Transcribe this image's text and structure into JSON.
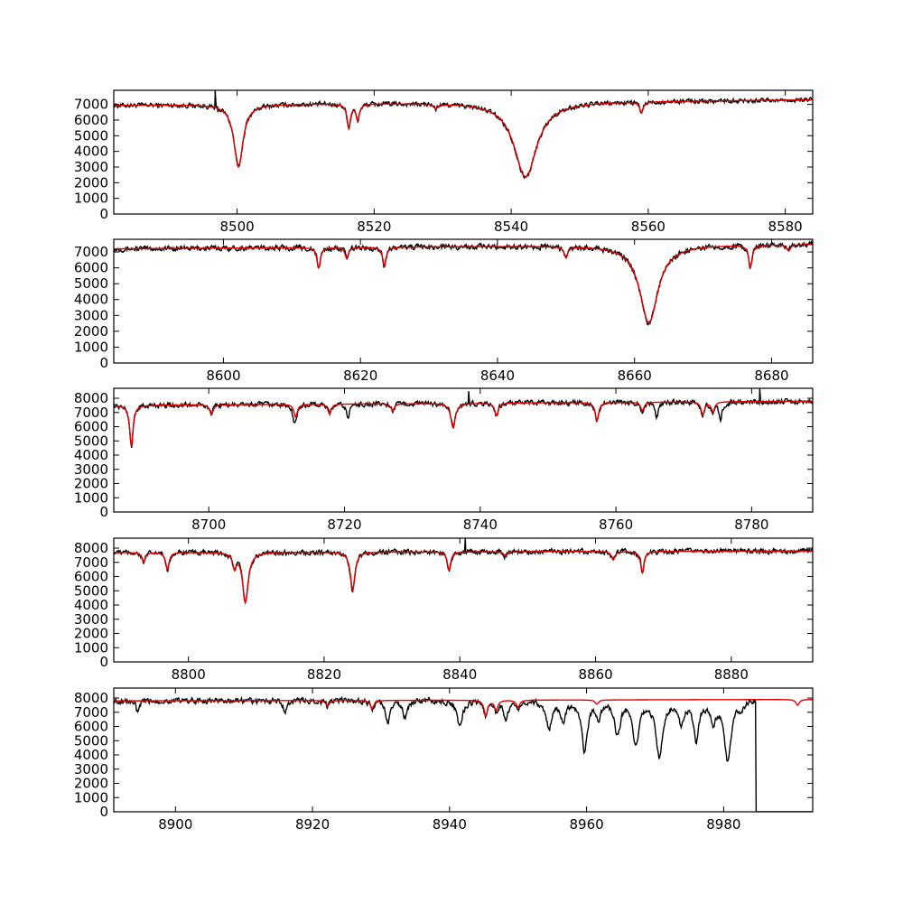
{
  "chart_data": [
    {
      "type": "line",
      "xlim": [
        8482,
        8584
      ],
      "ylim": [
        0,
        7900
      ],
      "xticks": [
        "8500",
        "8520",
        "8540",
        "8560",
        "8580"
      ],
      "yticks": [
        "0",
        "1000",
        "2000",
        "3000",
        "4000",
        "5000",
        "6000",
        "7000"
      ],
      "continuum": [
        [
          8482,
          6950
        ],
        [
          8584,
          7300
        ]
      ],
      "lines": [
        {
          "center": 8500.2,
          "depth": 4000,
          "width": 0.8
        },
        {
          "center": 8516.3,
          "depth": 1500,
          "width": 0.3
        },
        {
          "center": 8517.6,
          "depth": 1000,
          "width": 0.3
        },
        {
          "center": 8529.0,
          "depth": 300,
          "width": 0.3
        },
        {
          "center": 8542.1,
          "depth": 4800,
          "width": 2.0
        },
        {
          "center": 8559.0,
          "depth": 700,
          "width": 0.3
        }
      ],
      "series": [
        {
          "color": "#000000",
          "noise": 110,
          "spikes": [
            [
              8496.8,
              7900
            ],
            [
              8497.2,
              6500
            ]
          ],
          "extra": []
        },
        {
          "color": "#e00000",
          "noise": 0,
          "spikes": [],
          "extra": []
        }
      ]
    },
    {
      "type": "line",
      "xlim": [
        8584,
        8686
      ],
      "ylim": [
        0,
        7800
      ],
      "xticks": [
        "8600",
        "8620",
        "8640",
        "8660",
        "8680"
      ],
      "yticks": [
        "0",
        "1000",
        "2000",
        "3000",
        "4000",
        "5000",
        "6000",
        "7000"
      ],
      "continuum": [
        [
          8584,
          7200
        ],
        [
          8686,
          7500
        ]
      ],
      "lines": [
        {
          "center": 8613.9,
          "depth": 1300,
          "width": 0.3
        },
        {
          "center": 8618.0,
          "depth": 700,
          "width": 0.3
        },
        {
          "center": 8623.5,
          "depth": 1200,
          "width": 0.3
        },
        {
          "center": 8650.0,
          "depth": 700,
          "width": 0.3
        },
        {
          "center": 8662.1,
          "depth": 4900,
          "width": 1.6
        },
        {
          "center": 8676.9,
          "depth": 1400,
          "width": 0.3
        },
        {
          "center": 8682.5,
          "depth": 400,
          "width": 0.3
        }
      ],
      "series": [
        {
          "color": "#000000",
          "noise": 120,
          "spikes": [],
          "extra": []
        },
        {
          "color": "#e00000",
          "noise": 0,
          "spikes": [],
          "extra": []
        }
      ]
    },
    {
      "type": "line",
      "xlim": [
        8686,
        8789
      ],
      "ylim": [
        0,
        8700
      ],
      "xticks": [
        "8700",
        "8720",
        "8740",
        "8760",
        "8780"
      ],
      "yticks": [
        "0",
        "1000",
        "2000",
        "3000",
        "4000",
        "5000",
        "6000",
        "7000",
        "8000"
      ],
      "continuum": [
        [
          8686,
          7500
        ],
        [
          8789,
          7800
        ]
      ],
      "lines": [
        {
          "center": 8688.6,
          "depth": 2900,
          "width": 0.3
        },
        {
          "center": 8700.4,
          "depth": 700,
          "width": 0.3
        },
        {
          "center": 8712.8,
          "depth": 900,
          "width": 0.3
        },
        {
          "center": 8717.8,
          "depth": 700,
          "width": 0.3
        },
        {
          "center": 8727.1,
          "depth": 500,
          "width": 0.3
        },
        {
          "center": 8736.0,
          "depth": 1700,
          "width": 0.4
        },
        {
          "center": 8742.4,
          "depth": 900,
          "width": 0.3
        },
        {
          "center": 8757.2,
          "depth": 1300,
          "width": 0.3
        },
        {
          "center": 8763.9,
          "depth": 600,
          "width": 0.3
        },
        {
          "center": 8772.8,
          "depth": 900,
          "width": 0.3
        },
        {
          "center": 8774.3,
          "depth": 700,
          "width": 0.3
        }
      ],
      "series": [
        {
          "color": "#000000",
          "noise": 130,
          "spikes": [
            [
              8738.3,
              8500
            ],
            [
              8781.2,
              8700
            ]
          ],
          "extra": [
            {
              "center": 8712.5,
              "depth": 700,
              "width": 0.3
            },
            {
              "center": 8720.5,
              "depth": 900,
              "width": 0.3
            },
            {
              "center": 8766.0,
              "depth": 1100,
              "width": 0.3
            },
            {
              "center": 8775.4,
              "depth": 1200,
              "width": 0.3
            }
          ]
        },
        {
          "color": "#e00000",
          "noise": 0,
          "spikes": [],
          "extra": []
        }
      ]
    },
    {
      "type": "line",
      "xlim": [
        8789,
        8892
      ],
      "ylim": [
        0,
        8700
      ],
      "xticks": [
        "8800",
        "8820",
        "8840",
        "8860",
        "8880"
      ],
      "yticks": [
        "0",
        "1000",
        "2000",
        "3000",
        "4000",
        "5000",
        "6000",
        "7000",
        "8000"
      ],
      "continuum": [
        [
          8789,
          7700
        ],
        [
          8892,
          7800
        ]
      ],
      "lines": [
        {
          "center": 8793.4,
          "depth": 700,
          "width": 0.3
        },
        {
          "center": 8796.9,
          "depth": 1200,
          "width": 0.3
        },
        {
          "center": 8806.8,
          "depth": 1000,
          "width": 0.3
        },
        {
          "center": 8808.4,
          "depth": 3500,
          "width": 0.5
        },
        {
          "center": 8824.2,
          "depth": 2700,
          "width": 0.4
        },
        {
          "center": 8838.4,
          "depth": 1300,
          "width": 0.3
        },
        {
          "center": 8846.7,
          "depth": 300,
          "width": 0.3
        },
        {
          "center": 8866.9,
          "depth": 1500,
          "width": 0.3
        },
        {
          "center": 8862.6,
          "depth": 600,
          "width": 0.3
        }
      ],
      "series": [
        {
          "color": "#000000",
          "noise": 130,
          "spikes": [
            [
              8840.8,
              8700
            ]
          ],
          "extra": []
        },
        {
          "color": "#e00000",
          "noise": 0,
          "spikes": [],
          "extra": []
        }
      ]
    },
    {
      "type": "line",
      "xlim": [
        8891,
        8993
      ],
      "ylim": [
        0,
        8700
      ],
      "xticks": [
        "8900",
        "8920",
        "8940",
        "8960",
        "8980"
      ],
      "yticks": [
        "0",
        "1000",
        "2000",
        "3000",
        "4000",
        "5000",
        "6000",
        "7000",
        "8000"
      ],
      "continuum": [
        [
          8891,
          7800
        ],
        [
          8993,
          7900
        ]
      ],
      "lines": [
        {
          "center": 8922.2,
          "depth": 400,
          "width": 0.3
        },
        {
          "center": 8928.7,
          "depth": 600,
          "width": 0.3
        },
        {
          "center": 8945.3,
          "depth": 1100,
          "width": 0.3
        },
        {
          "center": 8946.8,
          "depth": 700,
          "width": 0.3
        },
        {
          "center": 8950.0,
          "depth": 500,
          "width": 0.3
        },
        {
          "center": 8961.5,
          "depth": 300,
          "width": 0.3
        },
        {
          "center": 8990.8,
          "depth": 400,
          "width": 0.3
        }
      ],
      "series": [
        {
          "color": "#000000",
          "noise": 150,
          "spikes": [],
          "extra": [
            {
              "center": 8894.5,
              "depth": 800,
              "width": 0.3
            },
            {
              "center": 8916.0,
              "depth": 900,
              "width": 0.3
            },
            {
              "center": 8931.0,
              "depth": 1500,
              "width": 0.4
            },
            {
              "center": 8933.5,
              "depth": 1200,
              "width": 0.4
            },
            {
              "center": 8941.5,
              "depth": 1800,
              "width": 0.5
            },
            {
              "center": 8948.2,
              "depth": 1300,
              "width": 0.4
            },
            {
              "center": 8954.5,
              "depth": 1900,
              "width": 0.5
            },
            {
              "center": 8956.6,
              "depth": 1400,
              "width": 0.4
            },
            {
              "center": 8959.7,
              "depth": 3500,
              "width": 0.5
            },
            {
              "center": 8961.8,
              "depth": 1300,
              "width": 0.3
            },
            {
              "center": 8964.5,
              "depth": 2400,
              "width": 0.5
            },
            {
              "center": 8967.2,
              "depth": 3100,
              "width": 0.5
            },
            {
              "center": 8970.6,
              "depth": 3900,
              "width": 0.6
            },
            {
              "center": 8973.8,
              "depth": 1500,
              "width": 0.4
            },
            {
              "center": 8976.0,
              "depth": 2700,
              "width": 0.5
            },
            {
              "center": 8978.5,
              "depth": 1500,
              "width": 0.4
            },
            {
              "center": 8980.6,
              "depth": 4300,
              "width": 0.6
            },
            {
              "center": 8982.5,
              "depth": 700,
              "width": 0.3
            }
          ],
          "cutoff": 8984.7
        },
        {
          "color": "#e00000",
          "noise": 0,
          "spikes": [],
          "extra": []
        }
      ]
    }
  ]
}
